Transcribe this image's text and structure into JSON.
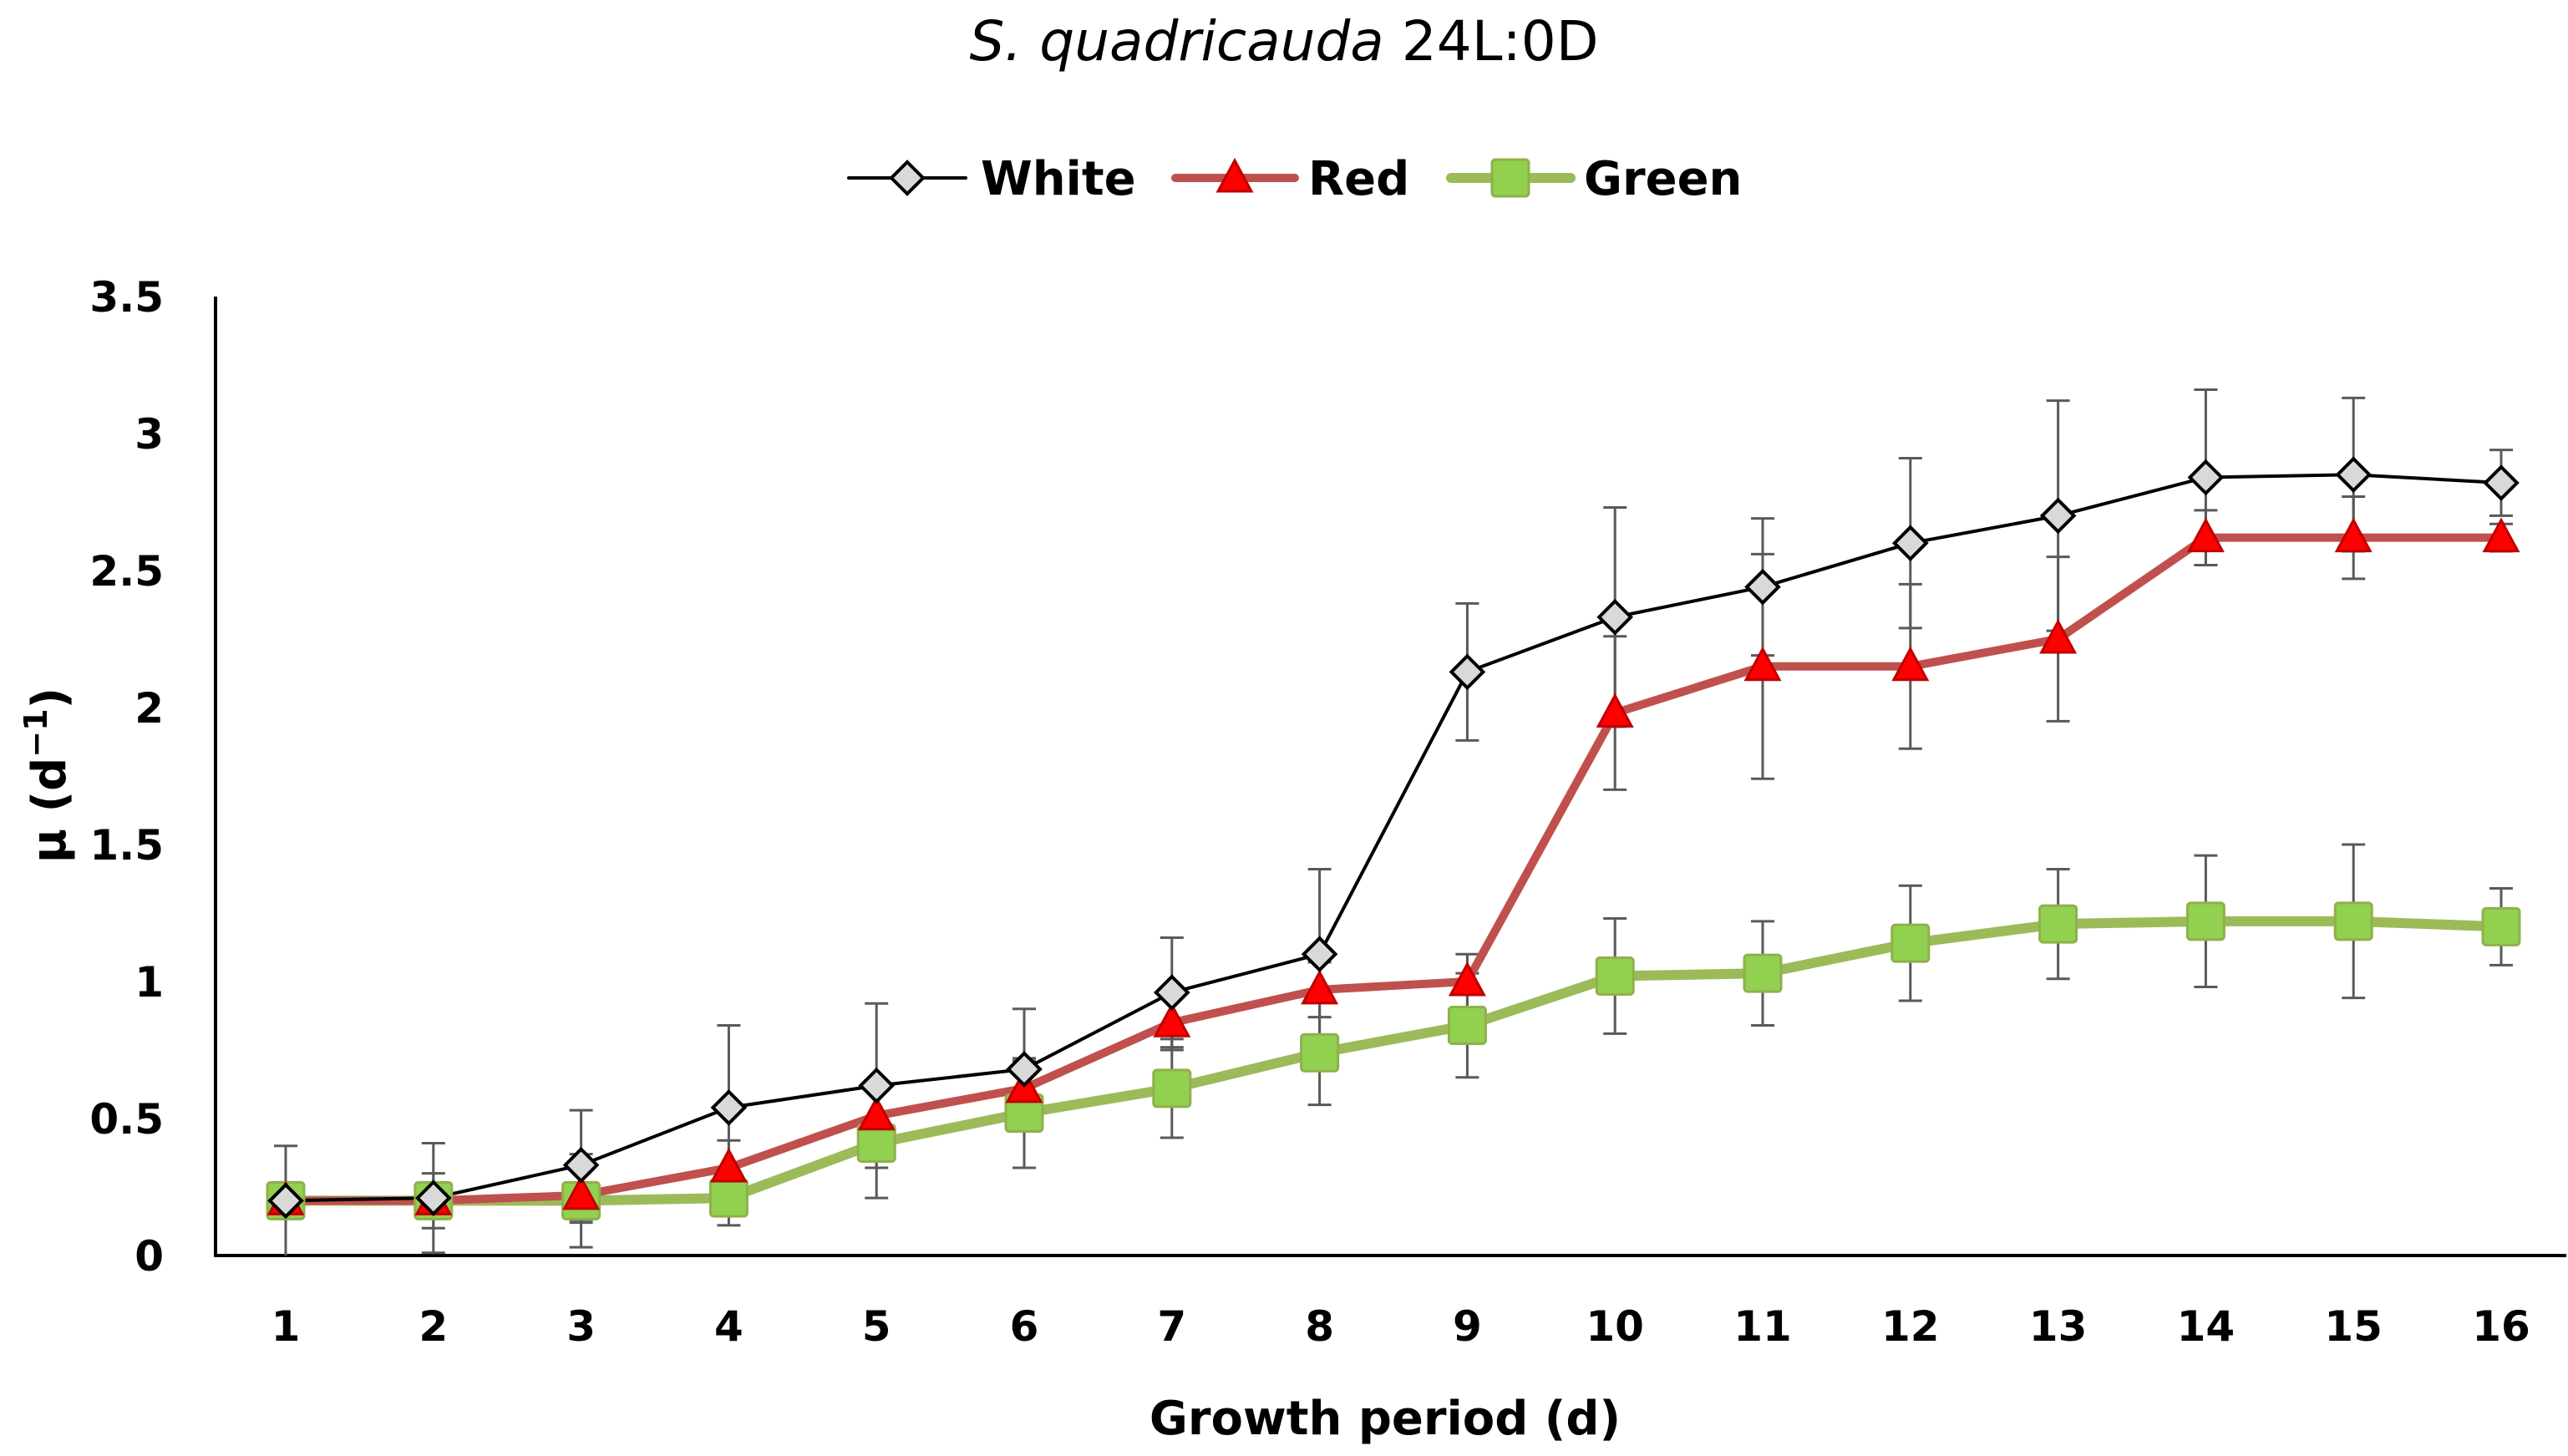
{
  "chart_data": {
    "type": "line",
    "title_italic": "S. quadricauda",
    "title_rest": " 24L:0D",
    "xlabel": "Growth period (d)",
    "ylabel": "μ (d",
    "ylabel_sup": "−1",
    "ylabel_close": ")",
    "ylim": [
      0,
      3.5
    ],
    "yticks": [
      "0",
      "0.5",
      "1",
      "1.5",
      "2",
      "2.5",
      "3",
      "3.5"
    ],
    "x": [
      "1",
      "2",
      "3",
      "4",
      "5",
      "6",
      "7",
      "8",
      "9",
      "10",
      "11",
      "12",
      "13",
      "14",
      "15",
      "16"
    ],
    "legend_position": "top-center",
    "series": [
      {
        "name": "White",
        "marker": "diamond",
        "color": "#000000",
        "marker_fill": "#d9d9d9",
        "values": [
          0.2,
          0.21,
          0.33,
          0.54,
          0.62,
          0.68,
          0.96,
          1.1,
          2.13,
          2.33,
          2.44,
          2.6,
          2.7,
          2.84,
          2.85,
          2.82
        ],
        "errors": [
          0.05,
          0.2,
          0.2,
          0.3,
          0.3,
          0.22,
          0.2,
          0.31,
          0.25,
          0.4,
          0.25,
          0.31,
          0.42,
          0.32,
          0.28,
          0.12
        ]
      },
      {
        "name": "Red",
        "marker": "triangle",
        "color": "#c0504d",
        "marker_fill": "#ff0000",
        "values": [
          0.2,
          0.2,
          0.22,
          0.32,
          0.51,
          0.61,
          0.85,
          0.97,
          1.0,
          1.98,
          2.15,
          2.15,
          2.25,
          2.62,
          2.62,
          2.62
        ],
        "errors": [
          0.05,
          0.05,
          0.1,
          0.1,
          0.1,
          0.1,
          0.1,
          0.1,
          0.1,
          0.28,
          0.41,
          0.3,
          0.3,
          0.1,
          0.15,
          0.05
        ]
      },
      {
        "name": "Green",
        "marker": "square",
        "color": "#9bbb59",
        "marker_fill": "#92d050",
        "values": [
          0.2,
          0.2,
          0.2,
          0.21,
          0.41,
          0.52,
          0.61,
          0.74,
          0.84,
          1.02,
          1.03,
          1.14,
          1.21,
          1.22,
          1.22,
          1.2
        ],
        "errors": [
          0.2,
          0.1,
          0.17,
          0.1,
          0.2,
          0.2,
          0.18,
          0.19,
          0.19,
          0.21,
          0.19,
          0.21,
          0.2,
          0.24,
          0.28,
          0.14
        ]
      }
    ]
  }
}
